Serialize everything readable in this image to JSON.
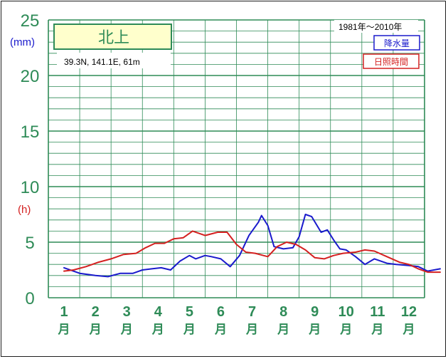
{
  "chart_data": {
    "type": "line",
    "title": "北上",
    "location": "39.3N,  141.1E,  61m",
    "period": "1981年〜2010年",
    "y_unit_left": "(mm)",
    "y_unit_left_color": "#1a1acc",
    "y_unit_right": "(h)",
    "y_unit_right_color": "#d42020",
    "ylim": [
      0,
      25
    ],
    "y_ticks": [
      "0",
      "5",
      "10",
      "15",
      "20",
      "25"
    ],
    "categories": [
      "1",
      "2",
      "3",
      "4",
      "5",
      "6",
      "7",
      "8",
      "9",
      "10",
      "11",
      "12"
    ],
    "category_unit": "月",
    "grid": true,
    "legend_position": "top-right",
    "colors": {
      "axis": "#2e8b57",
      "rain": "#1a1acc",
      "sun": "#d42020",
      "title_box": "#ffffcc"
    },
    "series": [
      {
        "name": "降水量",
        "color": "#1a1acc",
        "x": [
          0.5,
          1.0,
          1.5,
          1.9,
          2.3,
          2.7,
          3.0,
          3.3,
          3.6,
          3.9,
          4.2,
          4.5,
          4.7,
          5.0,
          5.2,
          5.5,
          5.8,
          6.1,
          6.4,
          6.7,
          6.8,
          7.0,
          7.2,
          7.5,
          7.8,
          8.0,
          8.2,
          8.4,
          8.7,
          8.9,
          9.1,
          9.3,
          9.5,
          9.8,
          10.1,
          10.4,
          10.8,
          11.1,
          11.5,
          11.8,
          12.1,
          12.5
        ],
        "values": [
          2.7,
          2.2,
          2.0,
          1.9,
          2.2,
          2.2,
          2.5,
          2.6,
          2.7,
          2.5,
          3.3,
          3.8,
          3.5,
          3.8,
          3.7,
          3.5,
          2.8,
          3.8,
          5.6,
          6.8,
          7.4,
          6.5,
          4.6,
          4.4,
          4.5,
          5.5,
          7.5,
          7.3,
          5.9,
          6.1,
          5.2,
          4.4,
          4.3,
          3.7,
          3.0,
          3.5,
          3.1,
          3.0,
          2.9,
          2.8,
          2.4,
          2.6
        ]
      },
      {
        "name": "日照時間",
        "color": "#d42020",
        "x": [
          0.5,
          0.8,
          1.2,
          1.6,
          2.0,
          2.4,
          2.8,
          3.1,
          3.4,
          3.7,
          4.0,
          4.3,
          4.6,
          5.0,
          5.4,
          5.7,
          6.0,
          6.3,
          6.6,
          7.0,
          7.3,
          7.6,
          7.9,
          8.2,
          8.5,
          8.8,
          9.1,
          9.4,
          9.8,
          10.1,
          10.4,
          10.8,
          11.2,
          11.5,
          11.8,
          12.1,
          12.5
        ],
        "values": [
          2.4,
          2.5,
          2.8,
          3.2,
          3.5,
          3.9,
          4.0,
          4.5,
          4.9,
          4.9,
          5.3,
          5.4,
          6.0,
          5.6,
          5.9,
          5.9,
          4.8,
          4.1,
          4.0,
          3.7,
          4.6,
          5.0,
          4.8,
          4.3,
          3.6,
          3.5,
          3.8,
          4.0,
          4.1,
          4.3,
          4.2,
          3.7,
          3.2,
          3.0,
          2.6,
          2.3,
          2.3
        ]
      }
    ]
  }
}
